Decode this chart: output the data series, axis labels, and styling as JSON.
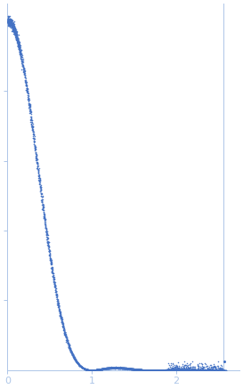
{
  "title": "",
  "xlabel": "",
  "ylabel": "",
  "xlim": [
    0,
    2.75
  ],
  "ylim": [
    0,
    1.05
  ],
  "dot_color": "#4472C4",
  "dot_size": 1.2,
  "bg_color": "#ffffff",
  "axis_color": "#aec6e8",
  "tick_color": "#aec6e8",
  "spine_color": "#aec6e8",
  "xticks": [
    0,
    1,
    2
  ],
  "xtick_labels": [
    "0",
    "1",
    "2"
  ],
  "vline_x": 2.56,
  "vline_color": "#aec6e8",
  "ytick_positions": [
    0.2,
    0.4,
    0.6,
    0.8
  ]
}
